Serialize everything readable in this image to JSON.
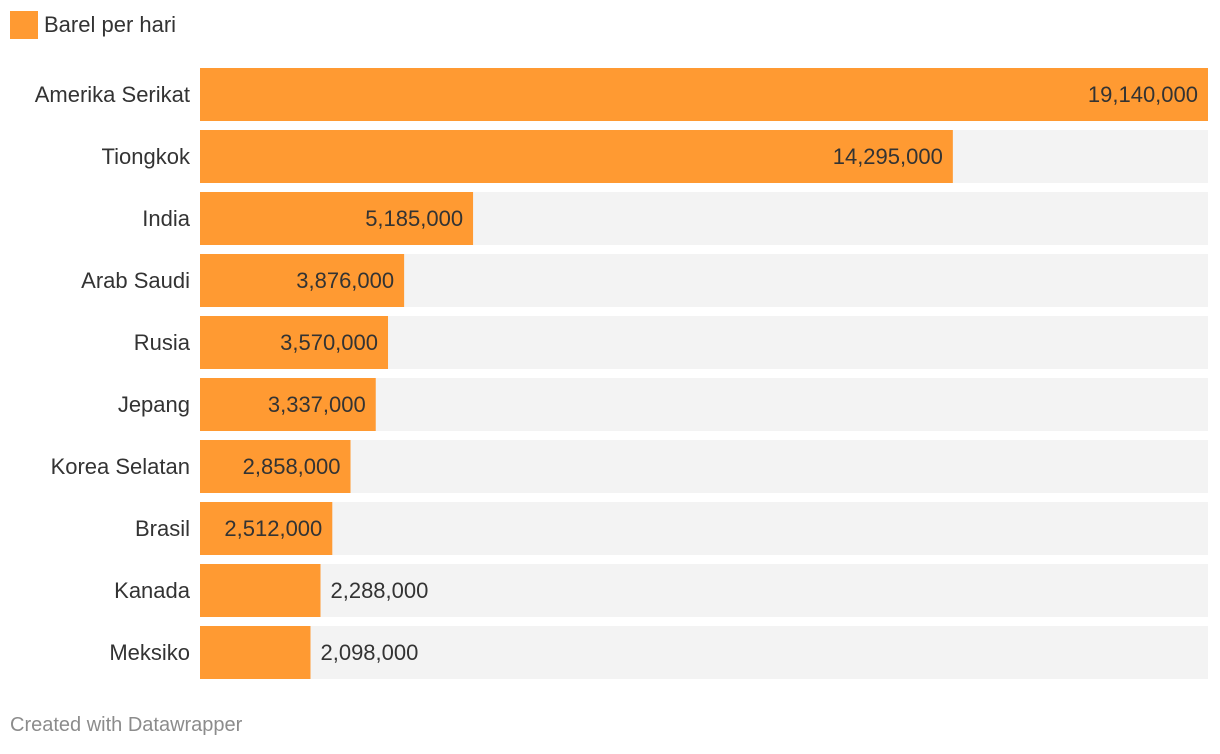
{
  "legend": {
    "label": "Barel per hari",
    "color": "#ff9a32"
  },
  "footer": {
    "credit": "Created with Datawrapper"
  },
  "colors": {
    "bar": "#ff9a32",
    "track": "#f3f3f3",
    "text": "#333333"
  },
  "chart_data": {
    "type": "bar",
    "orientation": "horizontal",
    "title": "",
    "xlabel": "",
    "ylabel": "",
    "xlim": [
      0,
      19140000
    ],
    "grid": false,
    "legend_position": "top-left",
    "categories": [
      "Amerika Serikat",
      "Tiongkok",
      "India",
      "Arab Saudi",
      "Rusia",
      "Jepang",
      "Korea Selatan",
      "Brasil",
      "Kanada",
      "Meksiko"
    ],
    "series": [
      {
        "name": "Barel per hari",
        "values": [
          19140000,
          14295000,
          5185000,
          3876000,
          3570000,
          3337000,
          2858000,
          2512000,
          2288000,
          2098000
        ],
        "labels": [
          "19,140,000",
          "14,295,000",
          "5,185,000",
          "3,876,000",
          "3,570,000",
          "3,337,000",
          "2,858,000",
          "2,512,000",
          "2,288,000",
          "2,098,000"
        ]
      }
    ]
  }
}
